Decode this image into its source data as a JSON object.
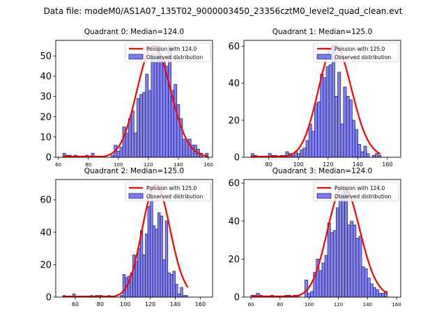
{
  "figure": {
    "suptitle": "Data file: modeM0/AS1A07_135T02_9000003450_23356cztM0_level2_quad_clean.evt"
  },
  "colors": {
    "bar_fill": "#7b7bf2",
    "bar_edge": "#1a1a4d",
    "poisson_line": "#ff0000"
  },
  "chart_data": [
    {
      "type": "bar",
      "title": "Quadrant 0: Median=124.0",
      "xlabel": "",
      "ylabel": "",
      "xlim": [
        58.3,
        162.8
      ],
      "ylim": [
        0,
        57.7
      ],
      "xticks": [
        60,
        80,
        100,
        120,
        140,
        160
      ],
      "yticks": [
        0,
        10,
        20,
        30,
        40,
        50
      ],
      "legend": {
        "position": "top-right",
        "entries": [
          "Poission with 124.0",
          "Observed distribution"
        ]
      },
      "bin_start": 63.0,
      "bin_width": 1.9,
      "counts": [
        2,
        1,
        1,
        0,
        1,
        0,
        0,
        0,
        1,
        0,
        2,
        0,
        0,
        0,
        0,
        0,
        0,
        1,
        6,
        3,
        5,
        15,
        12,
        19,
        23,
        12,
        29,
        31,
        32,
        41,
        33,
        51,
        47,
        55,
        50,
        48,
        45,
        55,
        33,
        36,
        26,
        19,
        9,
        8,
        9,
        6,
        6,
        4,
        2,
        0,
        2
      ],
      "series": [
        {
          "name": "Poission with 124.0",
          "type": "line",
          "mean": 124.0,
          "peak": 55.0
        }
      ]
    },
    {
      "type": "bar",
      "title": "Quadrant 1: Median=125.0",
      "xlabel": "",
      "ylabel": "",
      "xlim": [
        63.2,
        169.0
      ],
      "ylim": [
        0,
        63.2
      ],
      "xticks": [
        80,
        100,
        120,
        140,
        160
      ],
      "yticks": [
        0,
        20,
        40,
        60
      ],
      "legend": {
        "position": "top-right",
        "entries": [
          "Poission with 125.0",
          "Observed distribution"
        ]
      },
      "bin_start": 68.0,
      "bin_width": 1.95,
      "counts": [
        2,
        1,
        0,
        0,
        0,
        0,
        2,
        1,
        1,
        0,
        1,
        1,
        3,
        2,
        1,
        3,
        2,
        4,
        5,
        9,
        18,
        14,
        29,
        30,
        45,
        43,
        49,
        50,
        60,
        33,
        46,
        18,
        38,
        33,
        31,
        20,
        15,
        7,
        3,
        6,
        2,
        0,
        1,
        2,
        1
      ],
      "series": [
        {
          "name": "Poission with 125.0",
          "type": "line",
          "mean": 125.0,
          "peak": 60.5
        }
      ]
    },
    {
      "type": "bar",
      "title": "Quadrant 2: Median=125.0",
      "xlabel": "",
      "ylabel": "",
      "xlim": [
        44.4,
        169.8
      ],
      "ylim": [
        0,
        72.5
      ],
      "xticks": [
        60,
        80,
        100,
        120,
        140,
        160
      ],
      "yticks": [
        0,
        20,
        40,
        60
      ],
      "legend": {
        "position": "top-right",
        "entries": [
          "Poission with 125.0",
          "Observed distribution"
        ]
      },
      "bin_start": 50.0,
      "bin_width": 2.0,
      "counts": [
        1,
        0,
        0,
        0,
        2,
        0,
        0,
        0,
        0,
        0,
        0,
        1,
        0,
        1,
        1,
        1,
        0,
        0,
        1,
        0,
        0,
        0,
        0,
        1,
        14,
        12,
        13,
        15,
        26,
        22,
        30,
        41,
        26,
        39,
        56,
        60,
        44,
        42,
        52,
        50,
        23,
        47,
        15,
        14,
        16,
        8,
        2,
        6,
        1,
        1
      ],
      "series": [
        {
          "name": "Poission with 125.0",
          "type": "line",
          "mean": 125.0,
          "peak": 69.0
        }
      ]
    },
    {
      "type": "bar",
      "title": "Quadrant 3: Median=124.0",
      "xlabel": "",
      "ylabel": "",
      "xlim": [
        55.2,
        162.8
      ],
      "ylim": [
        0,
        61.9
      ],
      "xticks": [
        60,
        80,
        100,
        120,
        140,
        160
      ],
      "yticks": [
        0,
        20,
        40,
        60
      ],
      "legend": {
        "position": "top-right",
        "entries": [
          "Poission with 124.0",
          "Observed distribution"
        ]
      },
      "bin_start": 60.0,
      "bin_width": 1.95,
      "counts": [
        1,
        1,
        2,
        1,
        0,
        0,
        0,
        1,
        0,
        0,
        0,
        0,
        1,
        1,
        0,
        1,
        1,
        0,
        0,
        9,
        2,
        3,
        13,
        20,
        14,
        18,
        22,
        39,
        34,
        35,
        47,
        51,
        56,
        57,
        38,
        40,
        38,
        31,
        32,
        16,
        15,
        10,
        7,
        5,
        4,
        2,
        2,
        3
      ],
      "series": [
        {
          "name": "Poission with 124.0",
          "type": "line",
          "mean": 124.0,
          "peak": 58.0
        }
      ]
    }
  ]
}
